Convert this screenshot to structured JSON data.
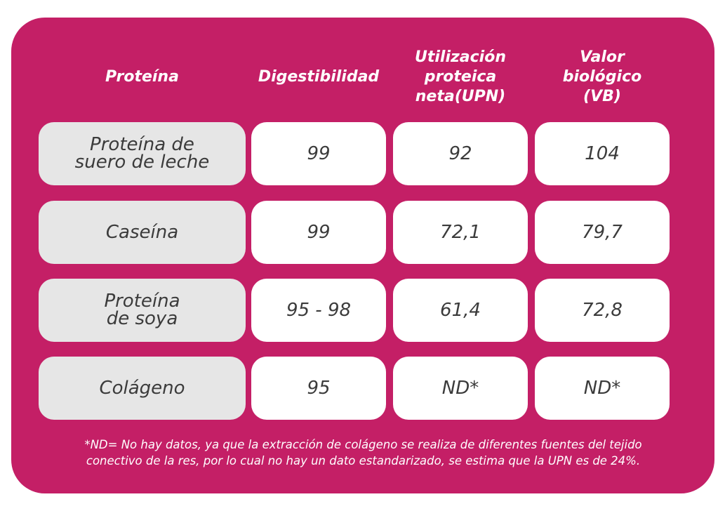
{
  "headers": [
    "Proteína",
    "Digestibilidad",
    "Utilización proteica neta(UPN)",
    "Valor biológico (VB)"
  ],
  "header_lines": [
    [
      "Proteína"
    ],
    [
      "Digestibilidad"
    ],
    [
      "Utilización",
      "proteica",
      "neta(UPN)"
    ],
    [
      "Valor",
      "biológico",
      "(VB)"
    ]
  ],
  "rows": [
    {
      "protein": "Proteína de suero de leche",
      "protein_lines": [
        "Proteína de",
        "suero de leche"
      ],
      "digestibility": "99",
      "upn": "92",
      "vb": "104"
    },
    {
      "protein": "Caseína",
      "protein_lines": [
        "Caseína"
      ],
      "digestibility": "99",
      "upn": "72,1",
      "vb": "79,7"
    },
    {
      "protein": "Proteína de soya",
      "protein_lines": [
        "Proteína",
        "de soya"
      ],
      "digestibility": "95 - 98",
      "upn": "61,4",
      "vb": "72,8"
    },
    {
      "protein": "Colágeno",
      "protein_lines": [
        "Colágeno"
      ],
      "digestibility": "95",
      "upn": "ND*",
      "vb": "ND*"
    }
  ],
  "footnote_lines": [
    "*ND= No hay datos, ya que la extracción de colágeno se realiza de diferentes fuentes del tejido",
    "conectivo de la res, por lo cual no hay un dato estandarizado, se estima que la UPN es de 24%."
  ],
  "colors": {
    "panel": "#c41f66",
    "name_cell": "#e6e6e6",
    "value_cell": "#ffffff",
    "text": "#3b3b3b",
    "header_text": "#ffffff"
  }
}
